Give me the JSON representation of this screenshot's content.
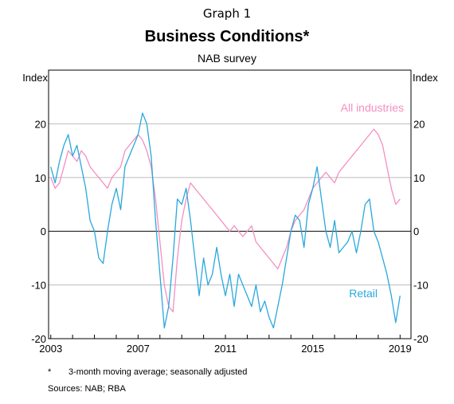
{
  "graph_number": "Graph 1",
  "title": "Business Conditions*",
  "subtitle": "NAB survey",
  "footnote_marker": "*",
  "footnote": "3-month moving average; seasonally adjusted",
  "sources": "Sources:  NAB; RBA",
  "colors": {
    "all_industries": "#f48fc0",
    "retail": "#29a8dc",
    "grid": "#bdbdbd",
    "zero": "#000000"
  },
  "chart_data": {
    "type": "line",
    "ylabel_left": "Index",
    "ylabel_right": "Index",
    "xlim": [
      2002.9,
      2019.5
    ],
    "ylim": [
      -20,
      30
    ],
    "y_ticks": [
      -20,
      -10,
      0,
      10,
      20
    ],
    "y_tick_labels": [
      "-20",
      "-10",
      "0",
      "10",
      "20"
    ],
    "x_ticks": [
      2003,
      2007,
      2011,
      2015,
      2019
    ],
    "x_tick_labels": [
      "2003",
      "2007",
      "2011",
      "2015",
      "2019"
    ],
    "grid": true,
    "series": [
      {
        "name": "All industries",
        "color": "#f48fc0",
        "x": [
          2003.0,
          2003.2,
          2003.4,
          2003.6,
          2003.8,
          2004.0,
          2004.2,
          2004.4,
          2004.6,
          2004.8,
          2005.0,
          2005.2,
          2005.4,
          2005.6,
          2005.8,
          2006.0,
          2006.2,
          2006.4,
          2006.6,
          2006.8,
          2007.0,
          2007.2,
          2007.4,
          2007.6,
          2007.8,
          2008.0,
          2008.2,
          2008.4,
          2008.6,
          2008.8,
          2009.0,
          2009.2,
          2009.4,
          2009.6,
          2009.8,
          2010.0,
          2010.2,
          2010.4,
          2010.6,
          2010.8,
          2011.0,
          2011.2,
          2011.4,
          2011.6,
          2011.8,
          2012.0,
          2012.2,
          2012.4,
          2012.6,
          2012.8,
          2013.0,
          2013.2,
          2013.4,
          2013.6,
          2013.8,
          2014.0,
          2014.2,
          2014.4,
          2014.6,
          2014.8,
          2015.0,
          2015.2,
          2015.4,
          2015.6,
          2015.8,
          2016.0,
          2016.2,
          2016.4,
          2016.6,
          2016.8,
          2017.0,
          2017.2,
          2017.4,
          2017.6,
          2017.8,
          2018.0,
          2018.2,
          2018.4,
          2018.6,
          2018.8,
          2019.0
        ],
        "values": [
          10,
          8,
          9,
          12,
          15,
          14,
          13,
          15,
          14,
          12,
          11,
          10,
          9,
          8,
          10,
          11,
          12,
          15,
          16,
          17,
          18,
          17,
          15,
          12,
          6,
          -2,
          -10,
          -14,
          -15,
          -5,
          2,
          6,
          9,
          8,
          7,
          6,
          5,
          4,
          3,
          2,
          1,
          0,
          1,
          0,
          -1,
          0,
          1,
          -2,
          -3,
          -4,
          -5,
          -6,
          -7,
          -5,
          -3,
          0,
          2,
          3,
          4,
          6,
          8,
          9,
          10,
          11,
          10,
          9,
          11,
          12,
          13,
          14,
          15,
          16,
          17,
          18,
          19,
          18,
          16,
          12,
          8,
          5,
          6
        ]
      },
      {
        "name": "Retail",
        "color": "#29a8dc",
        "x": [
          2003.0,
          2003.2,
          2003.4,
          2003.6,
          2003.8,
          2004.0,
          2004.2,
          2004.4,
          2004.6,
          2004.8,
          2005.0,
          2005.2,
          2005.4,
          2005.6,
          2005.8,
          2006.0,
          2006.2,
          2006.4,
          2006.6,
          2006.8,
          2007.0,
          2007.2,
          2007.4,
          2007.6,
          2007.8,
          2008.0,
          2008.2,
          2008.4,
          2008.6,
          2008.8,
          2009.0,
          2009.2,
          2009.4,
          2009.6,
          2009.8,
          2010.0,
          2010.2,
          2010.4,
          2010.6,
          2010.8,
          2011.0,
          2011.2,
          2011.4,
          2011.6,
          2011.8,
          2012.0,
          2012.2,
          2012.4,
          2012.6,
          2012.8,
          2013.0,
          2013.2,
          2013.4,
          2013.6,
          2013.8,
          2014.0,
          2014.2,
          2014.4,
          2014.6,
          2014.8,
          2015.0,
          2015.2,
          2015.4,
          2015.6,
          2015.8,
          2016.0,
          2016.2,
          2016.4,
          2016.6,
          2016.8,
          2017.0,
          2017.2,
          2017.4,
          2017.6,
          2017.8,
          2018.0,
          2018.2,
          2018.4,
          2018.6,
          2018.8,
          2019.0
        ],
        "values": [
          12,
          9,
          13,
          16,
          18,
          14,
          16,
          12,
          8,
          2,
          0,
          -5,
          -6,
          0,
          5,
          8,
          4,
          12,
          14,
          16,
          18,
          22,
          20,
          14,
          2,
          -8,
          -18,
          -14,
          -5,
          6,
          5,
          8,
          2,
          -5,
          -12,
          -5,
          -10,
          -8,
          -3,
          -8,
          -12,
          -8,
          -14,
          -8,
          -10,
          -12,
          -14,
          -10,
          -15,
          -13,
          -16,
          -18,
          -14,
          -10,
          -5,
          0,
          3,
          2,
          -3,
          5,
          8,
          12,
          6,
          0,
          -3,
          2,
          -4,
          -3,
          -2,
          0,
          -4,
          0,
          5,
          6,
          0,
          -2,
          -5,
          -8,
          -12,
          -17,
          -12
        ]
      }
    ]
  }
}
